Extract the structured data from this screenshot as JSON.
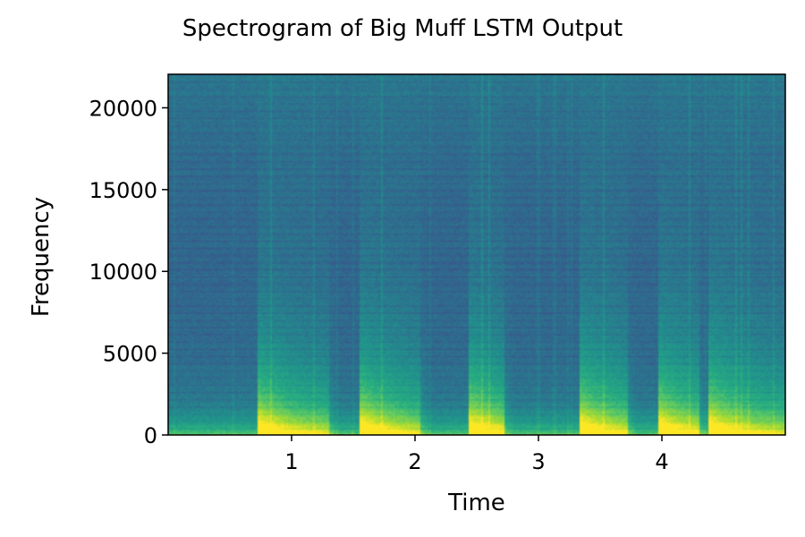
{
  "chart_data": {
    "type": "heatmap",
    "title": "Spectrogram of Big Muff LSTM Output",
    "xlabel": "Time",
    "ylabel": "Frequency",
    "xlim": [
      0,
      5.0
    ],
    "ylim": [
      0,
      22050
    ],
    "x_ticks": [
      1,
      2,
      3,
      4
    ],
    "x_tick_labels": [
      "1",
      "2",
      "3",
      "4"
    ],
    "y_ticks": [
      0,
      5000,
      10000,
      15000,
      20000
    ],
    "y_tick_labels": [
      "0",
      "5000",
      "10000",
      "15000",
      "20000"
    ],
    "colormap": "viridis",
    "grid": false,
    "onsets_s": [
      0.72,
      1.55,
      2.43,
      3.33,
      3.97,
      4.38
    ],
    "burst_ends_s": [
      1.3,
      2.05,
      2.72,
      3.72,
      4.3,
      5.0
    ],
    "quiet_intervals_s": [
      [
        0,
        0.72
      ],
      [
        2.05,
        2.43
      ],
      [
        2.72,
        3.33
      ],
      [
        3.72,
        3.97
      ]
    ]
  }
}
